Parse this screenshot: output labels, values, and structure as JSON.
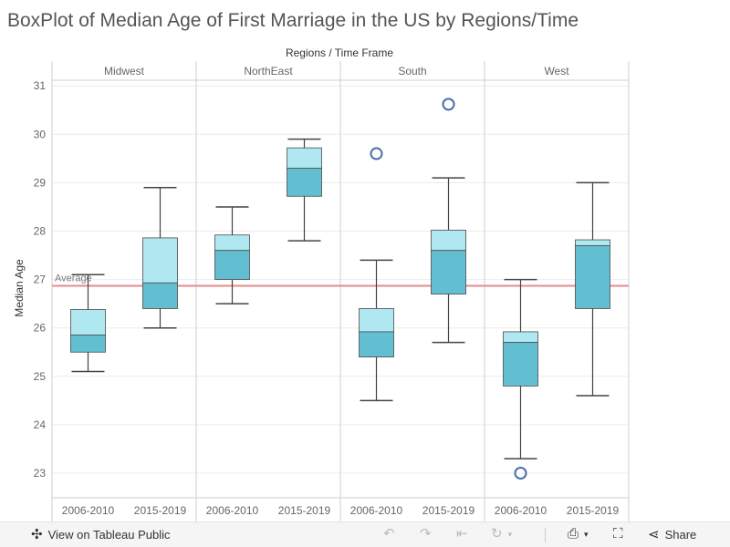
{
  "title": "BoxPlot of Median Age of First Marriage in the US by Regions/Time",
  "chart_data": {
    "type": "boxplot",
    "header_title": "Regions  /  Time Frame",
    "ylabel": "Median Age",
    "ylim": [
      22.5,
      31.2
    ],
    "yticks": [
      23,
      24,
      25,
      26,
      27,
      28,
      29,
      30,
      31
    ],
    "grid": true,
    "reference_line": {
      "label": "Average",
      "value": 26.87,
      "color": "#e68a8a"
    },
    "colors": {
      "upper_box": "#b0e8f2",
      "lower_box": "#62bfd2",
      "whisker": "#444444",
      "outlier": "#4a6fa5"
    },
    "regions": [
      {
        "name": "Midwest",
        "periods": [
          {
            "label": "2006-2010",
            "whisker_low": 25.1,
            "q1": 25.5,
            "median": 25.85,
            "q3": 26.38,
            "whisker_high": 27.1,
            "outliers": []
          },
          {
            "label": "2015-2019",
            "whisker_low": 26.0,
            "q1": 26.4,
            "median": 26.93,
            "q3": 27.86,
            "whisker_high": 28.9,
            "outliers": []
          }
        ]
      },
      {
        "name": "NorthEast",
        "periods": [
          {
            "label": "2006-2010",
            "whisker_low": 26.5,
            "q1": 27.0,
            "median": 27.6,
            "q3": 27.92,
            "whisker_high": 28.5,
            "outliers": []
          },
          {
            "label": "2015-2019",
            "whisker_low": 27.8,
            "q1": 28.72,
            "median": 29.3,
            "q3": 29.72,
            "whisker_high": 29.9,
            "outliers": []
          }
        ]
      },
      {
        "name": "South",
        "periods": [
          {
            "label": "2006-2010",
            "whisker_low": 24.5,
            "q1": 25.4,
            "median": 25.92,
            "q3": 26.4,
            "whisker_high": 27.4,
            "outliers": [
              29.6
            ]
          },
          {
            "label": "2015-2019",
            "whisker_low": 25.7,
            "q1": 26.7,
            "median": 27.6,
            "q3": 28.02,
            "whisker_high": 29.1,
            "outliers": [
              30.62
            ]
          }
        ]
      },
      {
        "name": "West",
        "periods": [
          {
            "label": "2006-2010",
            "whisker_low": 23.3,
            "q1": 24.8,
            "median": 25.7,
            "q3": 25.92,
            "whisker_high": 27.0,
            "outliers": [
              23.0
            ]
          },
          {
            "label": "2015-2019",
            "whisker_low": 24.6,
            "q1": 26.4,
            "median": 27.7,
            "q3": 27.82,
            "whisker_high": 29.0,
            "outliers": []
          }
        ]
      }
    ]
  },
  "toolbar": {
    "view_label": "View on Tableau Public",
    "share_label": "Share",
    "icons": [
      "tableau-logo-icon",
      "undo-icon",
      "redo-icon",
      "revert-icon",
      "refresh-icon",
      "download-icon",
      "fullscreen-icon",
      "share-icon"
    ]
  }
}
